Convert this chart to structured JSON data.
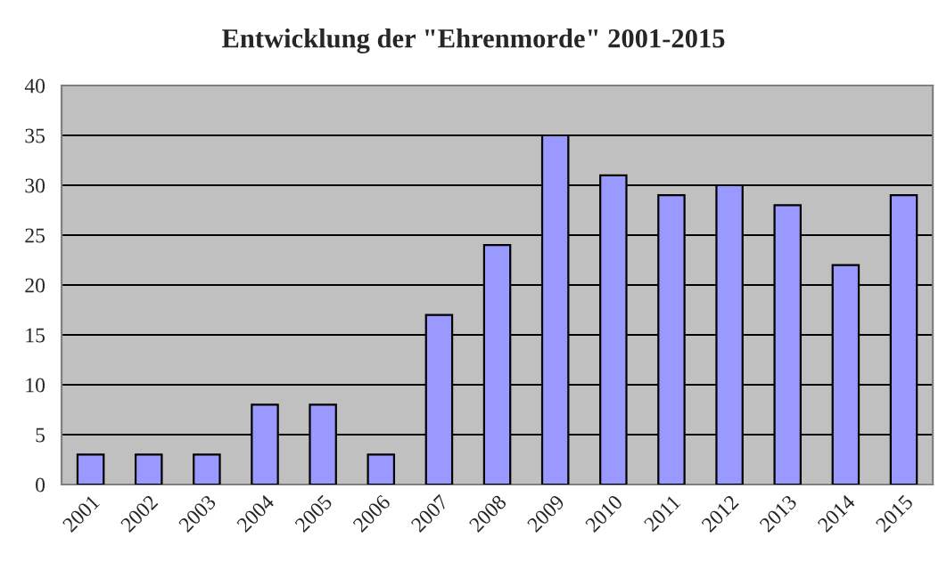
{
  "chart_data": {
    "type": "bar",
    "title": "Entwicklung der \"Ehrenmorde\" 2001-2015",
    "categories": [
      "2001",
      "2002",
      "2003",
      "2004",
      "2005",
      "2006",
      "2007",
      "2008",
      "2009",
      "2010",
      "2011",
      "2012",
      "2013",
      "2014",
      "2015"
    ],
    "values": [
      3,
      3,
      3,
      8,
      8,
      3,
      17,
      24,
      35,
      31,
      29,
      30,
      28,
      22,
      29
    ],
    "color": "#9999ff",
    "ylim": [
      0,
      40
    ],
    "yticks": [
      0,
      5,
      10,
      15,
      20,
      25,
      30,
      35,
      40
    ],
    "grid": "y",
    "legend": false
  }
}
